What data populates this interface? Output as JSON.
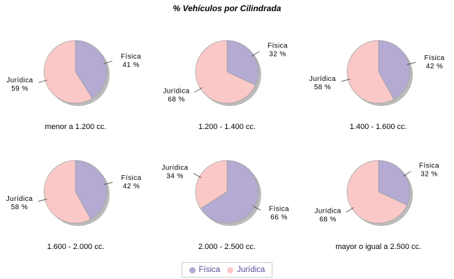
{
  "chart_data": {
    "type": "pie",
    "title": "% Vehículos por Cilindrada",
    "label_format": "{value} %",
    "legend_position": "bottom",
    "series": [
      {
        "name": "Física",
        "color": "#b4aad2"
      },
      {
        "name": "Jurídica",
        "color": "#fac9c7"
      }
    ],
    "pies": [
      {
        "category": "menor a 1.200 cc.",
        "values": [
          41,
          59
        ]
      },
      {
        "category": "1.200 - 1.400 cc.",
        "values": [
          32,
          68
        ]
      },
      {
        "category": "1.400 - 1.600 cc.",
        "values": [
          42,
          58
        ]
      },
      {
        "category": "1.600 - 2.000 cc.",
        "values": [
          42,
          58
        ]
      },
      {
        "category": "2.000 - 2.500 cc.",
        "values": [
          66,
          34
        ]
      },
      {
        "category": "mayor o igual a 2.500 cc.",
        "values": [
          32,
          68
        ]
      }
    ]
  },
  "style": {
    "background": "#ffffff",
    "slice_outline_color": "#a0a0a0",
    "shadow_color": "#969696",
    "leader_line_color": "#444444",
    "pie_label_color": "#000000",
    "legend_text_color": "#5a4a9c",
    "legend_border_color": "#cccccc"
  }
}
